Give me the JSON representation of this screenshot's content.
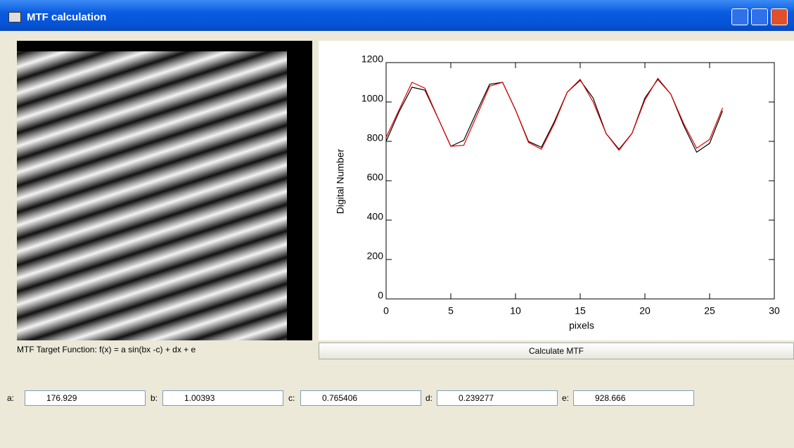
{
  "window": {
    "title": "MTF calculation"
  },
  "target_label": "MTF Target Function: f(x) = a sin(bx -c) + dx + e",
  "button": "Calculate MTF",
  "fields": [
    {
      "label": "a:",
      "value": "176.929"
    },
    {
      "label": "b:",
      "value": "1.00393"
    },
    {
      "label": "c:",
      "value": "0.765406"
    },
    {
      "label": "d:",
      "value": "0.239277"
    },
    {
      "label": "e:",
      "value": "928.666"
    }
  ],
  "chart_data": {
    "type": "line",
    "x_label": "pixels",
    "y_label": "Digital Number",
    "x": [
      0,
      1,
      2,
      3,
      4,
      5,
      6,
      7,
      8,
      9,
      10,
      11,
      12,
      13,
      14,
      15,
      16,
      17,
      18,
      19,
      20,
      21,
      22,
      23,
      24,
      25,
      26
    ],
    "series": [
      {
        "color": "#000000",
        "values": [
          800,
          950,
          1075,
          1060,
          920,
          775,
          805,
          950,
          1090,
          1100,
          960,
          800,
          770,
          900,
          1050,
          1110,
          1020,
          840,
          760,
          840,
          1020,
          1115,
          1040,
          880,
          745,
          790,
          955
        ]
      },
      {
        "color": "#e00000",
        "values": [
          820,
          960,
          1100,
          1070,
          920,
          775,
          780,
          930,
          1080,
          1100,
          960,
          795,
          760,
          890,
          1050,
          1115,
          1000,
          840,
          755,
          840,
          1010,
          1120,
          1040,
          890,
          765,
          810,
          970
        ]
      }
    ],
    "xlim": [
      0,
      30
    ],
    "ylim": [
      0,
      1200
    ],
    "xticks": [
      0,
      5,
      10,
      15,
      20,
      25,
      30
    ],
    "yticks": [
      0,
      200,
      400,
      600,
      800,
      1000,
      1200
    ]
  }
}
